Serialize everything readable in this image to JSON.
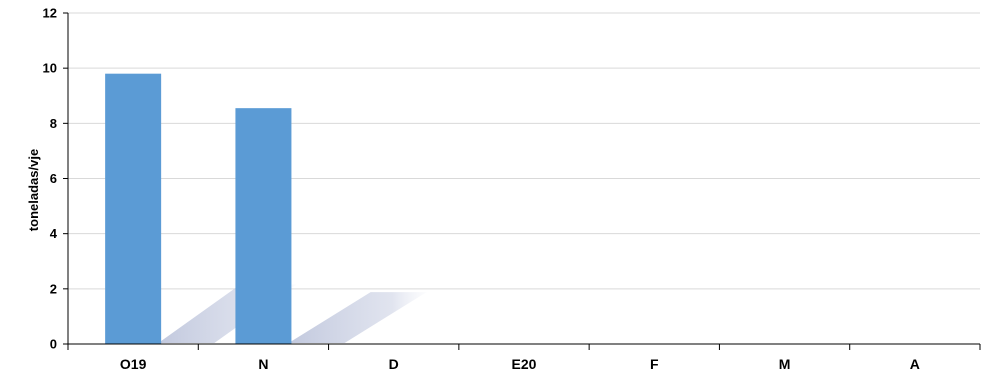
{
  "chart_data": {
    "type": "bar",
    "title": "",
    "xlabel": "",
    "ylabel": "toneladas/vje",
    "categories": [
      "O19",
      "N",
      "D",
      "E20",
      "F",
      "M",
      "A"
    ],
    "values": [
      9.8,
      8.55,
      null,
      null,
      null,
      null,
      null
    ],
    "ylim": [
      0,
      12
    ],
    "yticks": [
      0,
      2,
      4,
      6,
      8,
      10,
      12
    ],
    "grid": true,
    "legend": "none",
    "bar_color": "#5b9bd5",
    "shadow_color": "#b7bfd8",
    "grid_color": "#d9d9d9"
  }
}
